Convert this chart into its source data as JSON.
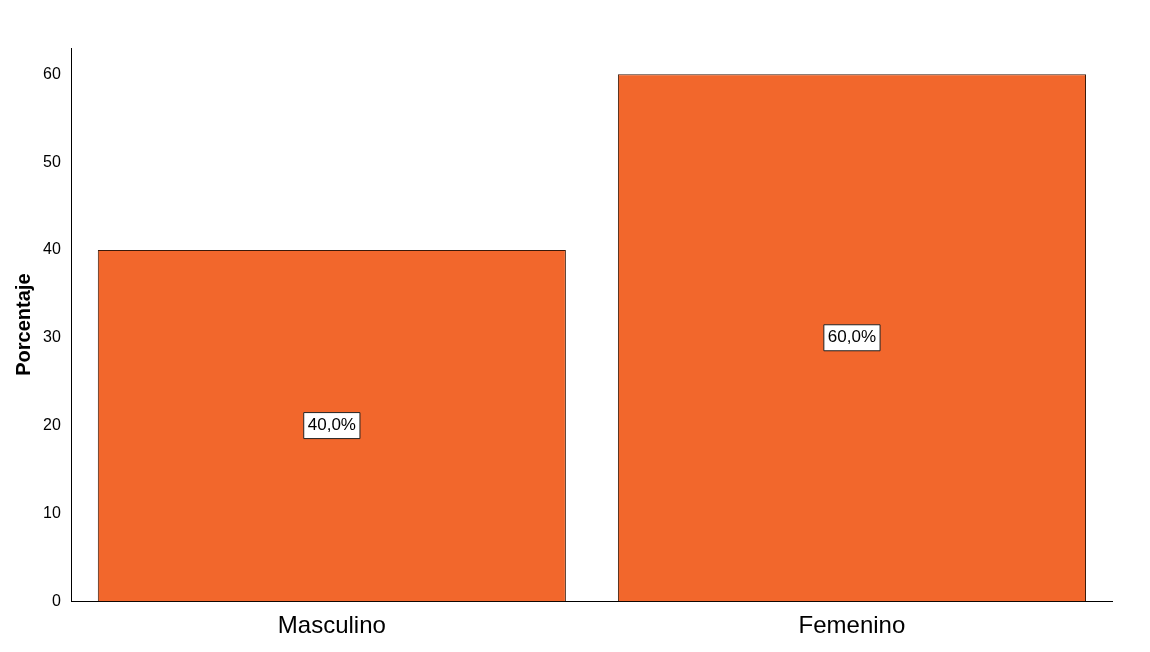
{
  "chart_data": {
    "type": "bar",
    "ylabel": "Porcentaje",
    "categories": [
      "Masculino",
      "Femenino"
    ],
    "values": [
      40,
      60
    ],
    "value_labels": [
      "40,0%",
      "60,0%"
    ],
    "color": "#f2672c",
    "ylim": [
      0,
      63
    ],
    "yticks": [
      0,
      10,
      20,
      30,
      40,
      50,
      60
    ],
    "grid": false,
    "legend": false
  }
}
